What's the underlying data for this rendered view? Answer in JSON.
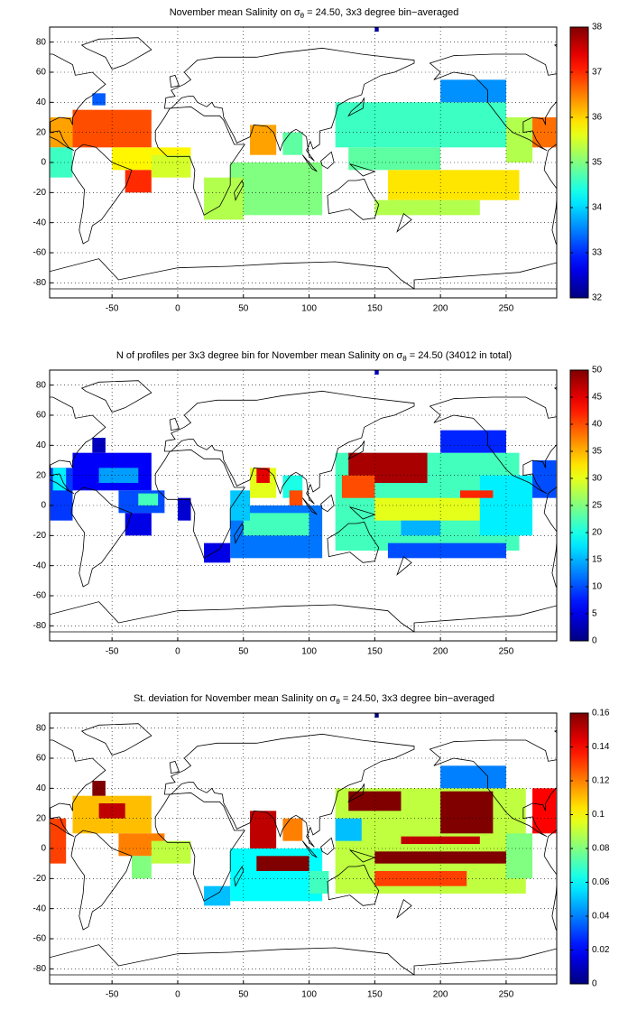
{
  "chart_data": [
    {
      "type": "heatmap",
      "title": "November mean Salinity on",
      "title_symbol": "σ",
      "title_subscript": "θ",
      "title_suffix": " = 24.50, 3x3 degree bin−averaged",
      "xlim": [
        -97.5,
        288.5
      ],
      "ylim": [
        -90,
        90
      ],
      "xticks": [
        -50,
        0,
        50,
        100,
        150,
        200,
        250
      ],
      "yticks": [
        -80,
        -60,
        -40,
        -20,
        0,
        20,
        40,
        60,
        80
      ],
      "grid": true,
      "colorbar": {
        "lim": [
          32,
          38
        ],
        "ticks": [
          32,
          33,
          34,
          35,
          36,
          37,
          38
        ]
      },
      "cells": [
        {
          "lon": [
            -80,
            -20
          ],
          "lat": [
            10,
            35
          ],
          "value": 36.8
        },
        {
          "lon": [
            -97,
            -80
          ],
          "lat": [
            10,
            30
          ],
          "value": 36.3
        },
        {
          "lon": [
            -50,
            10
          ],
          "lat": [
            -5,
            10
          ],
          "value": 35.8
        },
        {
          "lon": [
            -40,
            -20
          ],
          "lat": [
            -20,
            -5
          ],
          "value": 37.0
        },
        {
          "lon": [
            -20,
            10
          ],
          "lat": [
            -10,
            5
          ],
          "value": 35.5
        },
        {
          "lon": [
            -97,
            -80
          ],
          "lat": [
            -10,
            10
          ],
          "value": 34.6
        },
        {
          "lon": [
            -65,
            -55
          ],
          "lat": [
            38,
            46
          ],
          "value": 33.3
        },
        {
          "lon": [
            40,
            110
          ],
          "lat": [
            -35,
            0
          ],
          "value": 35.0
        },
        {
          "lon": [
            20,
            50
          ],
          "lat": [
            -38,
            -10
          ],
          "value": 35.3
        },
        {
          "lon": [
            55,
            75
          ],
          "lat": [
            5,
            25
          ],
          "value": 36.3
        },
        {
          "lon": [
            80,
            95
          ],
          "lat": [
            5,
            20
          ],
          "value": 34.8
        },
        {
          "lon": [
            120,
            250
          ],
          "lat": [
            10,
            40
          ],
          "value": 34.6
        },
        {
          "lon": [
            200,
            250
          ],
          "lat": [
            40,
            55
          ],
          "value": 33.6
        },
        {
          "lon": [
            130,
            200
          ],
          "lat": [
            -5,
            10
          ],
          "value": 34.8
        },
        {
          "lon": [
            160,
            260
          ],
          "lat": [
            -25,
            -5
          ],
          "value": 35.9
        },
        {
          "lon": [
            150,
            230
          ],
          "lat": [
            -35,
            -25
          ],
          "value": 35.3
        },
        {
          "lon": [
            250,
            270
          ],
          "lat": [
            0,
            30
          ],
          "value": 35.3
        },
        {
          "lon": [
            270,
            288
          ],
          "lat": [
            10,
            30
          ],
          "value": 36.6
        },
        {
          "lon": [
            150,
            153
          ],
          "lat": [
            87,
            90
          ],
          "value": 32.2
        }
      ]
    },
    {
      "type": "heatmap",
      "title": "N of profiles per 3x3 degree bin for November mean Salinity on",
      "title_symbol": "σ",
      "title_subscript": "θ",
      "title_suffix": " = 24.50 (34012 in total)",
      "xlim": [
        -97.5,
        288.5
      ],
      "ylim": [
        -90,
        90
      ],
      "xticks": [
        -50,
        0,
        50,
        100,
        150,
        200,
        250
      ],
      "yticks": [
        -80,
        -60,
        -40,
        -20,
        0,
        20,
        40,
        60,
        80
      ],
      "grid": true,
      "colorbar": {
        "lim": [
          0,
          50
        ],
        "ticks": [
          0,
          5,
          10,
          15,
          20,
          25,
          30,
          35,
          40,
          45,
          50
        ]
      },
      "cells": [
        {
          "lon": [
            -80,
            -20
          ],
          "lat": [
            10,
            35
          ],
          "value": 6
        },
        {
          "lon": [
            -60,
            -30
          ],
          "lat": [
            15,
            25
          ],
          "value": 14
        },
        {
          "lon": [
            -45,
            -10
          ],
          "lat": [
            -5,
            10
          ],
          "value": 10
        },
        {
          "lon": [
            -30,
            -15
          ],
          "lat": [
            0,
            8
          ],
          "value": 22
        },
        {
          "lon": [
            -40,
            -20
          ],
          "lat": [
            -20,
            -5
          ],
          "value": 5
        },
        {
          "lon": [
            -97,
            -80
          ],
          "lat": [
            -10,
            25
          ],
          "value": 9
        },
        {
          "lon": [
            -95,
            -85
          ],
          "lat": [
            10,
            25
          ],
          "value": 18
        },
        {
          "lon": [
            0,
            10
          ],
          "lat": [
            -10,
            5
          ],
          "value": 4
        },
        {
          "lon": [
            -65,
            -55
          ],
          "lat": [
            35,
            45
          ],
          "value": 3
        },
        {
          "lon": [
            40,
            110
          ],
          "lat": [
            -35,
            0
          ],
          "value": 12
        },
        {
          "lon": [
            50,
            100
          ],
          "lat": [
            -20,
            -5
          ],
          "value": 22
        },
        {
          "lon": [
            55,
            75
          ],
          "lat": [
            5,
            25
          ],
          "value": 30
        },
        {
          "lon": [
            60,
            70
          ],
          "lat": [
            15,
            25
          ],
          "value": 45
        },
        {
          "lon": [
            80,
            95
          ],
          "lat": [
            5,
            20
          ],
          "value": 20
        },
        {
          "lon": [
            40,
            55
          ],
          "lat": [
            -10,
            10
          ],
          "value": 16
        },
        {
          "lon": [
            85,
            95
          ],
          "lat": [
            0,
            10
          ],
          "value": 40
        },
        {
          "lon": [
            20,
            40
          ],
          "lat": [
            -38,
            -25
          ],
          "value": 5
        },
        {
          "lon": [
            120,
            260
          ],
          "lat": [
            -30,
            35
          ],
          "value": 22
        },
        {
          "lon": [
            130,
            190
          ],
          "lat": [
            15,
            35
          ],
          "value": 48
        },
        {
          "lon": [
            125,
            150
          ],
          "lat": [
            5,
            20
          ],
          "value": 40
        },
        {
          "lon": [
            150,
            230
          ],
          "lat": [
            -10,
            5
          ],
          "value": 30
        },
        {
          "lon": [
            200,
            250
          ],
          "lat": [
            35,
            50
          ],
          "value": 8
        },
        {
          "lon": [
            160,
            250
          ],
          "lat": [
            -35,
            -25
          ],
          "value": 10
        },
        {
          "lon": [
            230,
            270
          ],
          "lat": [
            -20,
            20
          ],
          "value": 18
        },
        {
          "lon": [
            215,
            240
          ],
          "lat": [
            5,
            10
          ],
          "value": 42
        },
        {
          "lon": [
            170,
            200
          ],
          "lat": [
            -20,
            -10
          ],
          "value": 15
        },
        {
          "lon": [
            270,
            288
          ],
          "lat": [
            5,
            30
          ],
          "value": 10
        },
        {
          "lon": [
            150,
            153
          ],
          "lat": [
            87,
            90
          ],
          "value": 3
        }
      ]
    },
    {
      "type": "heatmap",
      "title": "St. deviation for November mean Salinity on",
      "title_symbol": "σ",
      "title_subscript": "θ",
      "title_suffix": " = 24.50, 3x3 degree bin−averaged",
      "xlim": [
        -97.5,
        288.5
      ],
      "ylim": [
        -90,
        90
      ],
      "xticks": [
        -50,
        0,
        50,
        100,
        150,
        200,
        250
      ],
      "yticks": [
        -80,
        -60,
        -40,
        -20,
        0,
        20,
        40,
        60,
        80
      ],
      "grid": true,
      "colorbar": {
        "lim": [
          0,
          0.16
        ],
        "ticks": [
          0,
          0.02,
          0.04,
          0.06,
          0.08,
          0.1,
          0.12,
          0.14,
          0.16
        ]
      },
      "cells": [
        {
          "lon": [
            -80,
            -20
          ],
          "lat": [
            10,
            35
          ],
          "value": 0.11
        },
        {
          "lon": [
            -60,
            -40
          ],
          "lat": [
            20,
            30
          ],
          "value": 0.15
        },
        {
          "lon": [
            -45,
            -10
          ],
          "lat": [
            -5,
            10
          ],
          "value": 0.12
        },
        {
          "lon": [
            -35,
            -20
          ],
          "lat": [
            -20,
            -5
          ],
          "value": 0.08
        },
        {
          "lon": [
            -97,
            -85
          ],
          "lat": [
            -10,
            20
          ],
          "value": 0.13
        },
        {
          "lon": [
            -20,
            10
          ],
          "lat": [
            -10,
            5
          ],
          "value": 0.09
        },
        {
          "lon": [
            -65,
            -55
          ],
          "lat": [
            35,
            45
          ],
          "value": 0.16
        },
        {
          "lon": [
            40,
            110
          ],
          "lat": [
            -35,
            0
          ],
          "value": 0.06
        },
        {
          "lon": [
            55,
            75
          ],
          "lat": [
            0,
            25
          ],
          "value": 0.15
        },
        {
          "lon": [
            60,
            100
          ],
          "lat": [
            -15,
            -5
          ],
          "value": 0.16
        },
        {
          "lon": [
            80,
            95
          ],
          "lat": [
            5,
            20
          ],
          "value": 0.12
        },
        {
          "lon": [
            20,
            40
          ],
          "lat": [
            -38,
            -25
          ],
          "value": 0.05
        },
        {
          "lon": [
            100,
            115
          ],
          "lat": [
            -30,
            -15
          ],
          "value": 0.07
        },
        {
          "lon": [
            120,
            265
          ],
          "lat": [
            -30,
            40
          ],
          "value": 0.09
        },
        {
          "lon": [
            130,
            170
          ],
          "lat": [
            25,
            38
          ],
          "value": 0.16
        },
        {
          "lon": [
            200,
            240
          ],
          "lat": [
            10,
            38
          ],
          "value": 0.16
        },
        {
          "lon": [
            150,
            250
          ],
          "lat": [
            -10,
            -2
          ],
          "value": 0.16
        },
        {
          "lon": [
            170,
            230
          ],
          "lat": [
            3,
            8
          ],
          "value": 0.15
        },
        {
          "lon": [
            150,
            220
          ],
          "lat": [
            -25,
            -15
          ],
          "value": 0.13
        },
        {
          "lon": [
            200,
            250
          ],
          "lat": [
            40,
            55
          ],
          "value": 0.04
        },
        {
          "lon": [
            120,
            140
          ],
          "lat": [
            5,
            20
          ],
          "value": 0.05
        },
        {
          "lon": [
            250,
            270
          ],
          "lat": [
            -20,
            10
          ],
          "value": 0.08
        },
        {
          "lon": [
            270,
            288
          ],
          "lat": [
            10,
            40
          ],
          "value": 0.14
        },
        {
          "lon": [
            150,
            153
          ],
          "lat": [
            87,
            90
          ],
          "value": 0
        }
      ]
    }
  ]
}
